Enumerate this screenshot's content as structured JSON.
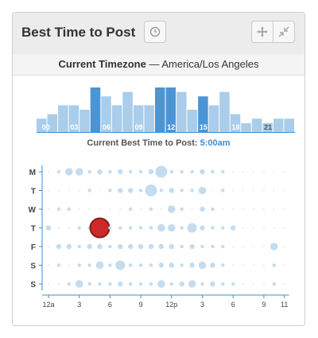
{
  "header": {
    "title": "Best Time to Post"
  },
  "timezone": {
    "label": "Current Timezone",
    "separator": "—",
    "value": "America/Los Angeles"
  },
  "best_time": {
    "label": "Current Best Time to Post:",
    "value": "5:00am"
  },
  "colors": {
    "bar_light": "#a9cdea",
    "bar_dark": "#4b95d4",
    "dot": "#c4dcef",
    "highlight": "#cc2a2a",
    "axis": "#3a8fd6"
  },
  "chart_data": [
    {
      "type": "bar",
      "categories": [
        "00",
        "01",
        "02",
        "03",
        "04",
        "05",
        "06",
        "07",
        "08",
        "09",
        "10",
        "11",
        "12",
        "13",
        "14",
        "15",
        "16",
        "17",
        "18",
        "19",
        "20",
        "21",
        "22",
        "23"
      ],
      "tick_labels": [
        "00",
        "03",
        "06",
        "09",
        "12",
        "15",
        "18",
        "21"
      ],
      "values": [
        3,
        4,
        6,
        6,
        5,
        10,
        8,
        6,
        9,
        6,
        6,
        10,
        10,
        9,
        5,
        8,
        6,
        9,
        4,
        2,
        3,
        2,
        3,
        3
      ],
      "highlight_categories": [
        "05",
        "11",
        "12",
        "15"
      ]
    },
    {
      "type": "scatter",
      "rows": [
        "M",
        "T",
        "W",
        "T",
        "F",
        "S",
        "S"
      ],
      "x_ticks": [
        "12a",
        "3",
        "6",
        "9",
        "12p",
        "3",
        "6",
        "9",
        "11"
      ],
      "x_tick_hours": [
        0,
        3,
        6,
        9,
        12,
        15,
        18,
        21,
        23
      ],
      "points": [
        {
          "day": 0,
          "hour": 1,
          "v": 1
        },
        {
          "day": 0,
          "hour": 2,
          "v": 3
        },
        {
          "day": 0,
          "hour": 3,
          "v": 3
        },
        {
          "day": 0,
          "hour": 4,
          "v": 1
        },
        {
          "day": 0,
          "hour": 5,
          "v": 2
        },
        {
          "day": 0,
          "hour": 6,
          "v": 1
        },
        {
          "day": 0,
          "hour": 7,
          "v": 2
        },
        {
          "day": 0,
          "hour": 8,
          "v": 1
        },
        {
          "day": 0,
          "hour": 9,
          "v": 1
        },
        {
          "day": 0,
          "hour": 10,
          "v": 2
        },
        {
          "day": 0,
          "hour": 11,
          "v": 5
        },
        {
          "day": 0,
          "hour": 12,
          "v": 1
        },
        {
          "day": 0,
          "hour": 13,
          "v": 1
        },
        {
          "day": 0,
          "hour": 14,
          "v": 1
        },
        {
          "day": 0,
          "hour": 15,
          "v": 2
        },
        {
          "day": 0,
          "hour": 16,
          "v": 1
        },
        {
          "day": 0,
          "hour": 17,
          "v": 1
        },
        {
          "day": 1,
          "hour": 4,
          "v": 1
        },
        {
          "day": 1,
          "hour": 6,
          "v": 1
        },
        {
          "day": 1,
          "hour": 7,
          "v": 2
        },
        {
          "day": 1,
          "hour": 8,
          "v": 2
        },
        {
          "day": 1,
          "hour": 9,
          "v": 1
        },
        {
          "day": 1,
          "hour": 10,
          "v": 5
        },
        {
          "day": 1,
          "hour": 11,
          "v": 1
        },
        {
          "day": 1,
          "hour": 12,
          "v": 2
        },
        {
          "day": 1,
          "hour": 13,
          "v": 1
        },
        {
          "day": 1,
          "hour": 14,
          "v": 1
        },
        {
          "day": 1,
          "hour": 15,
          "v": 3
        },
        {
          "day": 1,
          "hour": 17,
          "v": 1
        },
        {
          "day": 2,
          "hour": 1,
          "v": 1
        },
        {
          "day": 2,
          "hour": 2,
          "v": 1
        },
        {
          "day": 2,
          "hour": 8,
          "v": 1
        },
        {
          "day": 2,
          "hour": 10,
          "v": 1
        },
        {
          "day": 2,
          "hour": 12,
          "v": 3
        },
        {
          "day": 2,
          "hour": 13,
          "v": 1
        },
        {
          "day": 2,
          "hour": 15,
          "v": 2
        },
        {
          "day": 2,
          "hour": 16,
          "v": 1
        },
        {
          "day": 3,
          "hour": 0,
          "v": 2
        },
        {
          "day": 3,
          "hour": 3,
          "v": 1
        },
        {
          "day": 3,
          "hour": 4,
          "v": 1
        },
        {
          "day": 3,
          "hour": 5,
          "v": 9,
          "highlight": true
        },
        {
          "day": 3,
          "hour": 6,
          "v": 1
        },
        {
          "day": 3,
          "hour": 7,
          "v": 1
        },
        {
          "day": 3,
          "hour": 8,
          "v": 1
        },
        {
          "day": 3,
          "hour": 9,
          "v": 1
        },
        {
          "day": 3,
          "hour": 10,
          "v": 1
        },
        {
          "day": 3,
          "hour": 11,
          "v": 3
        },
        {
          "day": 3,
          "hour": 12,
          "v": 3
        },
        {
          "day": 3,
          "hour": 13,
          "v": 1
        },
        {
          "day": 3,
          "hour": 14,
          "v": 4
        },
        {
          "day": 3,
          "hour": 15,
          "v": 2
        },
        {
          "day": 3,
          "hour": 16,
          "v": 1
        },
        {
          "day": 3,
          "hour": 17,
          "v": 1
        },
        {
          "day": 3,
          "hour": 18,
          "v": 2
        },
        {
          "day": 4,
          "hour": 1,
          "v": 2
        },
        {
          "day": 4,
          "hour": 2,
          "v": 2
        },
        {
          "day": 4,
          "hour": 3,
          "v": 1
        },
        {
          "day": 4,
          "hour": 4,
          "v": 2
        },
        {
          "day": 4,
          "hour": 5,
          "v": 2
        },
        {
          "day": 4,
          "hour": 6,
          "v": 1
        },
        {
          "day": 4,
          "hour": 7,
          "v": 2
        },
        {
          "day": 4,
          "hour": 8,
          "v": 2
        },
        {
          "day": 4,
          "hour": 9,
          "v": 2
        },
        {
          "day": 4,
          "hour": 10,
          "v": 2
        },
        {
          "day": 4,
          "hour": 11,
          "v": 2
        },
        {
          "day": 4,
          "hour": 12,
          "v": 2
        },
        {
          "day": 4,
          "hour": 13,
          "v": 1
        },
        {
          "day": 4,
          "hour": 14,
          "v": 2
        },
        {
          "day": 4,
          "hour": 15,
          "v": 1
        },
        {
          "day": 4,
          "hour": 16,
          "v": 1
        },
        {
          "day": 4,
          "hour": 17,
          "v": 1
        },
        {
          "day": 4,
          "hour": 22,
          "v": 3
        },
        {
          "day": 5,
          "hour": 1,
          "v": 1
        },
        {
          "day": 5,
          "hour": 3,
          "v": 1
        },
        {
          "day": 5,
          "hour": 4,
          "v": 1
        },
        {
          "day": 5,
          "hour": 5,
          "v": 3
        },
        {
          "day": 5,
          "hour": 6,
          "v": 1
        },
        {
          "day": 5,
          "hour": 7,
          "v": 4
        },
        {
          "day": 5,
          "hour": 8,
          "v": 1
        },
        {
          "day": 5,
          "hour": 9,
          "v": 1
        },
        {
          "day": 5,
          "hour": 10,
          "v": 1
        },
        {
          "day": 5,
          "hour": 11,
          "v": 2
        },
        {
          "day": 5,
          "hour": 12,
          "v": 2
        },
        {
          "day": 5,
          "hour": 13,
          "v": 1
        },
        {
          "day": 5,
          "hour": 14,
          "v": 2
        },
        {
          "day": 5,
          "hour": 15,
          "v": 3
        },
        {
          "day": 5,
          "hour": 16,
          "v": 2
        },
        {
          "day": 5,
          "hour": 17,
          "v": 1
        },
        {
          "day": 5,
          "hour": 22,
          "v": 1
        },
        {
          "day": 6,
          "hour": 2,
          "v": 1
        },
        {
          "day": 6,
          "hour": 3,
          "v": 3
        },
        {
          "day": 6,
          "hour": 4,
          "v": 1
        },
        {
          "day": 6,
          "hour": 5,
          "v": 1
        },
        {
          "day": 6,
          "hour": 6,
          "v": 1
        },
        {
          "day": 6,
          "hour": 7,
          "v": 2
        },
        {
          "day": 6,
          "hour": 8,
          "v": 1
        },
        {
          "day": 6,
          "hour": 9,
          "v": 1
        },
        {
          "day": 6,
          "hour": 10,
          "v": 1
        },
        {
          "day": 6,
          "hour": 11,
          "v": 3
        },
        {
          "day": 6,
          "hour": 12,
          "v": 1
        },
        {
          "day": 6,
          "hour": 13,
          "v": 2
        },
        {
          "day": 6,
          "hour": 14,
          "v": 3
        },
        {
          "day": 6,
          "hour": 15,
          "v": 1
        },
        {
          "day": 6,
          "hour": 16,
          "v": 2
        },
        {
          "day": 6,
          "hour": 17,
          "v": 1
        },
        {
          "day": 6,
          "hour": 18,
          "v": 1
        },
        {
          "day": 6,
          "hour": 22,
          "v": 1
        }
      ]
    }
  ]
}
